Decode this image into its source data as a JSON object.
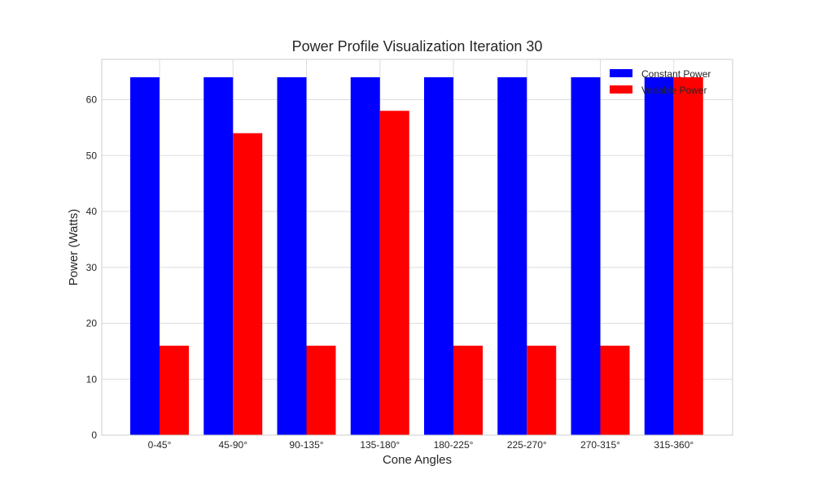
{
  "chart_data": {
    "type": "bar",
    "title": "Power Profile Visualization Iteration 30",
    "xlabel": "Cone Angles",
    "ylabel": "Power (Watts)",
    "categories": [
      "0-45°",
      "45-90°",
      "90-135°",
      "135-180°",
      "180-225°",
      "225-270°",
      "270-315°",
      "315-360°"
    ],
    "ylim": [
      0,
      67.2
    ],
    "yticks": [
      0,
      10,
      20,
      30,
      40,
      50,
      60
    ],
    "grid": true,
    "legend_position": "top-right",
    "series": [
      {
        "name": "Constant Power",
        "color": "#0000ff",
        "values": [
          64,
          64,
          64,
          64,
          64,
          64,
          64,
          64
        ]
      },
      {
        "name": "Variable Power",
        "color": "#ff0000",
        "values": [
          16,
          54,
          16,
          58,
          16,
          16,
          16,
          64
        ]
      }
    ]
  }
}
